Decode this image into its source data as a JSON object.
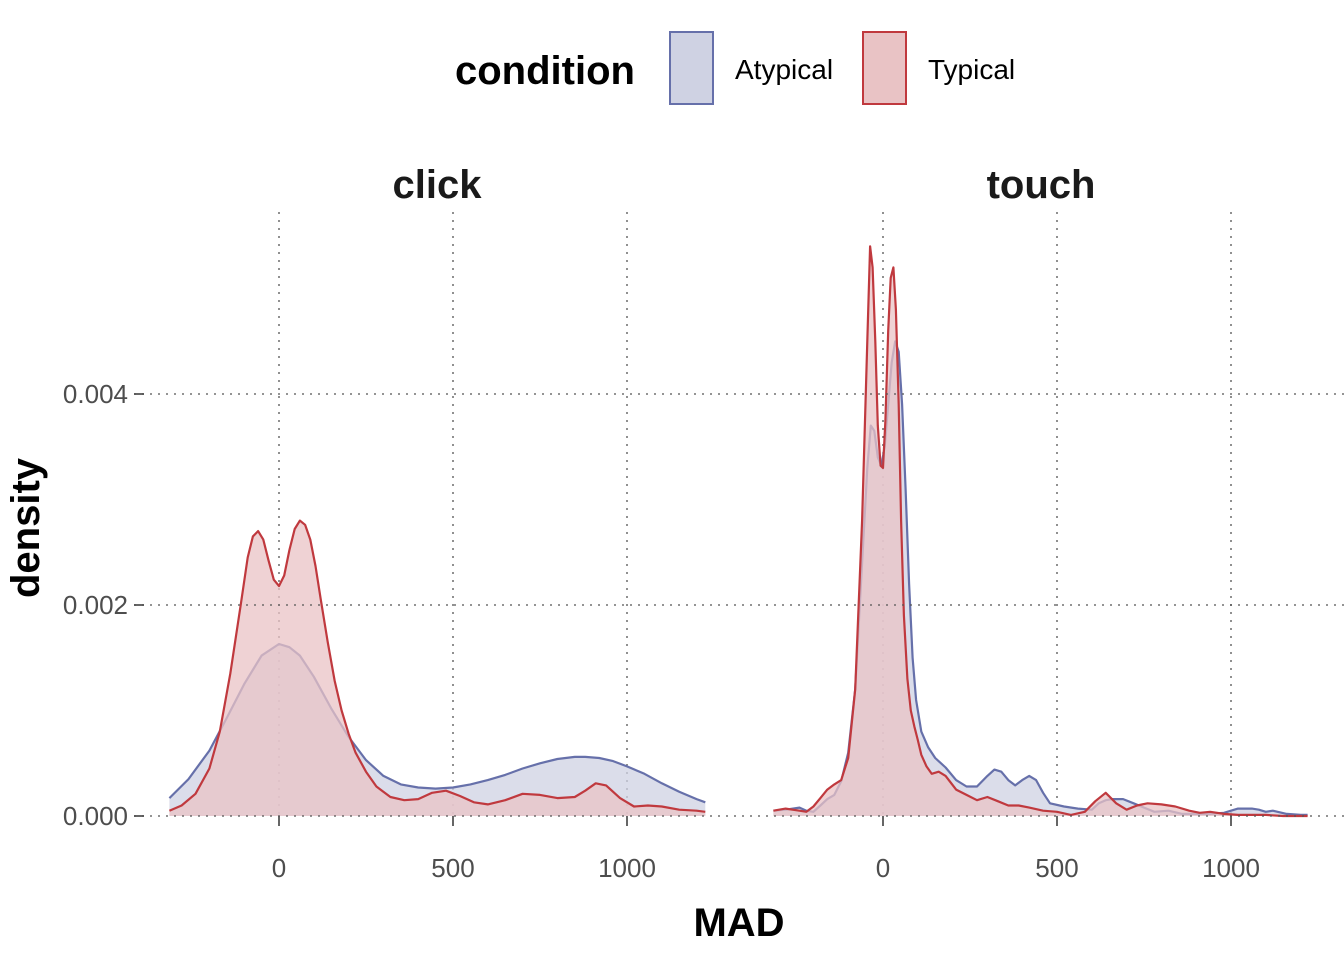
{
  "legend": {
    "title": "condition",
    "items": [
      "Atypical",
      "Typical"
    ]
  },
  "x_axis_title": "MAD",
  "y_axis_title": "density",
  "colors": {
    "Atypical_line": "#6670aa",
    "Atypical_fill": "#cfd2e3",
    "Typical_line": "#c0393e",
    "Typical_fill": "#e9c3c5",
    "background": "#ffffff"
  },
  "chart_data": {
    "type": "area",
    "xlabel": "MAD",
    "ylabel": "density",
    "xlim": [
      -320,
      1310
    ],
    "ylim": [
      0,
      0.0055
    ],
    "x_ticks": [
      0,
      500,
      1000
    ],
    "y_ticks": [
      0.0,
      0.002,
      0.004
    ],
    "y_tick_labels": [
      "0.000",
      "0.002",
      "0.004"
    ],
    "grid": true,
    "legend_position": "top",
    "facets": [
      {
        "name": "click",
        "series": [
          {
            "name": "Atypical",
            "x": [
              -315,
              -260,
              -200,
              -150,
              -100,
              -50,
              0,
              30,
              60,
              100,
              150,
              200,
              250,
              300,
              350,
              400,
              450,
              500,
              550,
              600,
              650,
              700,
              750,
              800,
              850,
              880,
              920,
              960,
              1000,
              1050,
              1100,
              1150,
              1200,
              1225
            ],
            "y": [
              0.00017,
              0.00035,
              0.00062,
              0.00093,
              0.00125,
              0.00152,
              0.00163,
              0.0016,
              0.00152,
              0.00132,
              0.00102,
              0.00075,
              0.00053,
              0.00038,
              0.0003,
              0.00027,
              0.00026,
              0.00027,
              0.0003,
              0.00034,
              0.00039,
              0.00045,
              0.0005,
              0.00054,
              0.00056,
              0.00056,
              0.00055,
              0.00052,
              0.00047,
              0.0004,
              0.00031,
              0.00023,
              0.00016,
              0.00013
            ]
          },
          {
            "name": "Typical",
            "x": [
              -315,
              -280,
              -240,
              -200,
              -170,
              -140,
              -110,
              -90,
              -75,
              -60,
              -45,
              -30,
              -15,
              0,
              15,
              30,
              45,
              60,
              75,
              90,
              105,
              120,
              140,
              160,
              180,
              200,
              220,
              250,
              280,
              320,
              360,
              400,
              440,
              480,
              520,
              560,
              600,
              650,
              700,
              750,
              800,
              850,
              880,
              910,
              940,
              980,
              1020,
              1060,
              1100,
              1150,
              1200,
              1225
            ],
            "y": [
              5e-05,
              0.0001,
              0.00021,
              0.00045,
              0.0008,
              0.00135,
              0.002,
              0.00245,
              0.00265,
              0.0027,
              0.00262,
              0.00242,
              0.00224,
              0.00218,
              0.00228,
              0.00252,
              0.00272,
              0.0028,
              0.00276,
              0.00262,
              0.00237,
              0.00205,
              0.00165,
              0.00128,
              0.001,
              0.00078,
              0.0006,
              0.00042,
              0.00028,
              0.00018,
              0.00015,
              0.00016,
              0.00022,
              0.00024,
              0.00019,
              0.00013,
              0.00011,
              0.00015,
              0.00021,
              0.0002,
              0.00017,
              0.00018,
              0.00024,
              0.00031,
              0.00029,
              0.00017,
              9e-05,
              0.0001,
              9e-05,
              6e-05,
              5e-05,
              4e-05
            ]
          }
        ]
      },
      {
        "name": "touch",
        "series": [
          {
            "name": "Atypical",
            "x": [
              -315,
              -280,
              -240,
              -220,
              -200,
              -180,
              -160,
              -140,
              -120,
              -100,
              -80,
              -60,
              -45,
              -35,
              -25,
              -15,
              -5,
              5,
              15,
              25,
              35,
              45,
              55,
              65,
              75,
              85,
              95,
              110,
              130,
              150,
              180,
              210,
              240,
              270,
              300,
              320,
              340,
              360,
              380,
              400,
              420,
              440,
              460,
              480,
              520,
              560,
              600,
              620,
              640,
              660,
              690,
              720,
              750,
              780,
              820,
              860,
              900,
              940,
              980,
              1020,
              1060,
              1080,
              1100,
              1120,
              1160,
              1200,
              1220
            ],
            "y": [
              5e-05,
              6e-05,
              8e-05,
              5e-05,
              4e-05,
              0.0001,
              0.00016,
              0.0002,
              0.00033,
              0.0006,
              0.0012,
              0.0024,
              0.0033,
              0.0037,
              0.00365,
              0.0034,
              0.00332,
              0.0035,
              0.0039,
              0.0043,
              0.0045,
              0.0044,
              0.0039,
              0.0031,
              0.0022,
              0.0015,
              0.0011,
              0.0008,
              0.00065,
              0.00055,
              0.00046,
              0.00034,
              0.00028,
              0.00028,
              0.00038,
              0.00044,
              0.00042,
              0.00034,
              0.00029,
              0.00034,
              0.00038,
              0.00034,
              0.00022,
              0.00012,
              9e-05,
              7e-05,
              6e-05,
              0.00012,
              0.00015,
              0.00016,
              0.00016,
              0.00012,
              8e-05,
              4e-05,
              5e-05,
              2e-05,
              2e-05,
              2e-05,
              3e-05,
              7e-05,
              7e-05,
              6e-05,
              4e-05,
              5e-05,
              2e-05,
              1e-05,
              1e-05
            ]
          },
          {
            "name": "Typical",
            "x": [
              -315,
              -280,
              -240,
              -220,
              -200,
              -180,
              -160,
              -140,
              -120,
              -100,
              -80,
              -60,
              -45,
              -37,
              -30,
              -22,
              -15,
              -7,
              0,
              7,
              15,
              22,
              30,
              37,
              45,
              52,
              60,
              70,
              80,
              90,
              100,
              110,
              125,
              140,
              160,
              180,
              210,
              240,
              270,
              300,
              330,
              360,
              390,
              420,
              460,
              500,
              540,
              580,
              610,
              640,
              670,
              700,
              730,
              760,
              800,
              840,
              880,
              910,
              940,
              980,
              1020,
              1060,
              1100,
              1150,
              1200,
              1220
            ],
            "y": [
              5e-05,
              7e-05,
              5e-05,
              4e-05,
              9e-05,
              0.00017,
              0.00025,
              0.0003,
              0.00034,
              0.00055,
              0.0012,
              0.0028,
              0.0045,
              0.0054,
              0.0052,
              0.0045,
              0.0037,
              0.00332,
              0.0033,
              0.00375,
              0.0046,
              0.0051,
              0.0052,
              0.0048,
              0.0039,
              0.0028,
              0.0019,
              0.0013,
              0.001,
              0.00085,
              0.00072,
              0.00058,
              0.00047,
              0.0004,
              0.00042,
              0.00038,
              0.00025,
              0.0002,
              0.00015,
              0.00018,
              0.00014,
              0.0001,
              0.0001,
              8e-05,
              5e-05,
              4e-05,
              1e-05,
              4e-05,
              0.00014,
              0.00022,
              0.00012,
              6e-05,
              0.0001,
              0.00012,
              0.00011,
              9e-05,
              5e-05,
              3e-05,
              4e-05,
              2e-05,
              1e-05,
              1e-05,
              1e-05,
              0,
              0,
              0
            ]
          }
        ]
      }
    ]
  }
}
